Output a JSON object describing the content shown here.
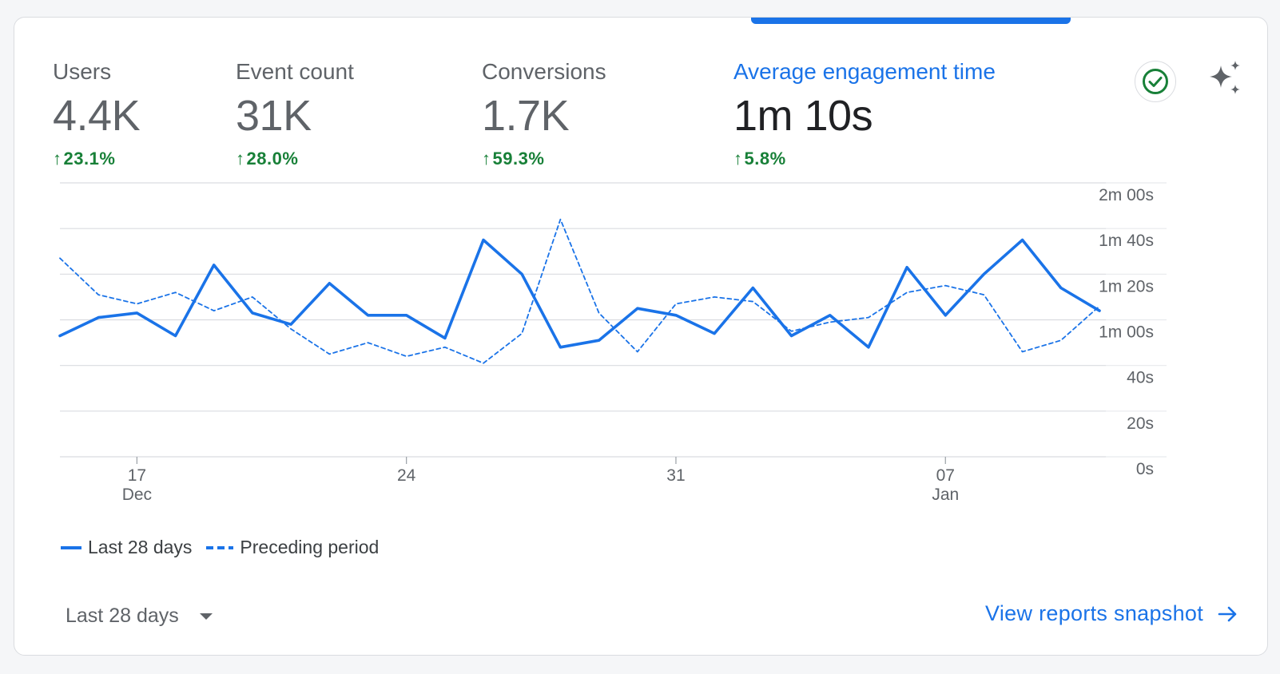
{
  "metrics": [
    {
      "label": "Users",
      "value": "4.4K",
      "change": "23.1%"
    },
    {
      "label": "Event count",
      "value": "31K",
      "change": "28.0%"
    },
    {
      "label": "Conversions",
      "value": "1.7K",
      "change": "59.3%"
    },
    {
      "label": "Average engagement time",
      "value": "1m 10s",
      "change": "5.8%"
    }
  ],
  "active_metric": "Average engagement time",
  "icons": {
    "check": "check-circle-icon",
    "insights": "sparkle-icon",
    "arrow": "arrow-up-icon",
    "link_arrow": "arrow-right-icon"
  },
  "colors": {
    "accent": "#1a73e8",
    "positive": "#188038",
    "text": "#5f6368"
  },
  "chart_data": {
    "type": "line",
    "y_unit": "seconds",
    "ylim": [
      0,
      120
    ],
    "y_ticks": [
      {
        "value": 0,
        "label": "0s"
      },
      {
        "value": 20,
        "label": "20s"
      },
      {
        "value": 40,
        "label": "40s"
      },
      {
        "value": 60,
        "label": "1m 00s"
      },
      {
        "value": 80,
        "label": "1m 20s"
      },
      {
        "value": 100,
        "label": "1m 40s"
      },
      {
        "value": 120,
        "label": "2m 00s"
      }
    ],
    "x_ticks": [
      {
        "index": 2,
        "day": "17",
        "month": "Dec"
      },
      {
        "index": 9,
        "day": "24",
        "month": ""
      },
      {
        "index": 16,
        "day": "31",
        "month": ""
      },
      {
        "index": 23,
        "day": "07",
        "month": "Jan"
      }
    ],
    "grid": true,
    "legend_position": "bottom-left",
    "series": [
      {
        "name": "Last 28 days",
        "style": "solid",
        "values": [
          53,
          61,
          63,
          53,
          84,
          63,
          58,
          76,
          62,
          62,
          52,
          95,
          80,
          48,
          51,
          65,
          62,
          54,
          74,
          53,
          62,
          48,
          83,
          62,
          80,
          95,
          74,
          64
        ]
      },
      {
        "name": "Preceding period",
        "style": "dashed",
        "values": [
          87,
          71,
          67,
          72,
          64,
          70,
          56,
          45,
          50,
          44,
          48,
          41,
          54,
          104,
          63,
          46,
          67,
          70,
          68,
          55,
          59,
          61,
          72,
          75,
          71,
          46,
          51,
          66
        ]
      }
    ]
  },
  "legend": {
    "current": "Last 28 days",
    "previous": "Preceding period"
  },
  "footer": {
    "range_label": "Last 28 days",
    "snapshot_link": "View reports snapshot"
  }
}
